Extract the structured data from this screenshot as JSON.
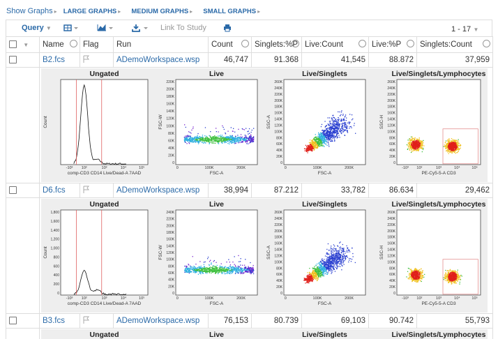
{
  "nav": {
    "show_graphs": "Show Graphs",
    "large": "LARGE GRAPHS",
    "medium": "MEDIUM GRAPHS",
    "small": "SMALL GRAPHS"
  },
  "toolbar": {
    "query": "Query",
    "link_to_study": "Link To Study",
    "pagination": "1 - 17"
  },
  "table": {
    "columns": [
      "Name",
      "Flag",
      "Run",
      "Count",
      "Singlets:%P",
      "Live:Count",
      "Live:%P",
      "Singlets:Count"
    ],
    "rows": [
      {
        "name": "B2.fcs",
        "run": "ADemoWorkspace.wsp",
        "cells": [
          "46,747",
          "91.368",
          "41,545",
          "88.872",
          "37,959"
        ],
        "graphs": [
          {
            "title": "Ungated",
            "x_label": "comp-CD3 CD14 Live/Dead-A 7AAD",
            "y_label": "Count",
            "x_ticks": [
              "-10³",
              "10²",
              "10³",
              "10⁴",
              "10⁵"
            ],
            "y_ticks": []
          },
          {
            "title": "Live",
            "x_label": "FSC-A",
            "y_label": "FSC-W",
            "x_ticks": [
              "0",
              "100K",
              "200K"
            ],
            "y_ticks": [
              "0",
              "20K",
              "40K",
              "60K",
              "80K",
              "100K",
              "120K",
              "140K",
              "160K",
              "180K",
              "200K",
              "220K"
            ]
          },
          {
            "title": "Live/Singlets",
            "x_label": "FSC-A",
            "y_label": "SSC-A",
            "x_ticks": [
              "0",
              "100K",
              "200K"
            ],
            "y_ticks": [
              "0",
              "20K",
              "40K",
              "60K",
              "80K",
              "100K",
              "120K",
              "140K",
              "160K",
              "180K",
              "200K",
              "220K",
              "240K",
              "260K"
            ]
          },
          {
            "title": "Live/Singlets/Lymphocytes",
            "x_label": "PE-Cy5-5-A CD3",
            "y_label": "SSC-H",
            "x_ticks": [
              "-10³",
              "10²",
              "10³",
              "10⁴",
              "10⁵"
            ],
            "y_ticks": [
              "0",
              "20K",
              "40K",
              "60K",
              "80K",
              "100K",
              "120K",
              "140K",
              "160K",
              "180K",
              "200K",
              "220K",
              "240K",
              "260K"
            ]
          }
        ]
      },
      {
        "name": "D6.fcs",
        "run": "ADemoWorkspace.wsp",
        "cells": [
          "38,994",
          "87.212",
          "33,782",
          "86.634",
          "29,462"
        ],
        "graphs": [
          {
            "title": "Ungated",
            "x_label": "comp-CD3 CD14 Live/Dead-A 7AAD",
            "y_label": "Count",
            "x_ticks": [
              "-10³",
              "10²",
              "10³",
              "10⁴",
              "10⁵"
            ],
            "y_ticks": [
              "0",
              "200",
              "400",
              "600",
              "800",
              "1,000",
              "1,200",
              "1,400",
              "1,600",
              "1,800"
            ]
          },
          {
            "title": "Live",
            "x_label": "FSC-A",
            "y_label": "FSC-W",
            "x_ticks": [
              "0",
              "100K",
              "200K"
            ],
            "y_ticks": [
              "0",
              "20K",
              "40K",
              "60K",
              "80K",
              "100K",
              "120K",
              "140K",
              "160K",
              "180K",
              "200K",
              "220K",
              "240K"
            ]
          },
          {
            "title": "Live/Singlets",
            "x_label": "FSC-A",
            "y_label": "SSC-A",
            "x_ticks": [
              "0",
              "100K",
              "200K"
            ],
            "y_ticks": [
              "0",
              "20K",
              "40K",
              "60K",
              "80K",
              "100K",
              "120K",
              "140K",
              "160K",
              "180K",
              "200K",
              "220K",
              "240K",
              "260K"
            ]
          },
          {
            "title": "Live/Singlets/Lymphocytes",
            "x_label": "PE-Cy5-5-A CD3",
            "y_label": "SSC-H",
            "x_ticks": [
              "-10³",
              "10²",
              "10³",
              "10⁴",
              "10⁵"
            ],
            "y_ticks": [
              "0",
              "20K",
              "40K",
              "60K",
              "80K",
              "100K",
              "120K",
              "140K",
              "160K",
              "180K",
              "200K",
              "220K",
              "240K",
              "260K"
            ]
          }
        ]
      },
      {
        "name": "B3.fcs",
        "run": "ADemoWorkspace.wsp",
        "cells": [
          "76,153",
          "80.739",
          "69,103",
          "90.742",
          "55,793"
        ],
        "graphs": [
          {
            "title": "Ungated"
          },
          {
            "title": "Live"
          },
          {
            "title": "Live/Singlets"
          },
          {
            "title": "Live/Singlets/Lymphocytes"
          }
        ]
      }
    ]
  }
}
